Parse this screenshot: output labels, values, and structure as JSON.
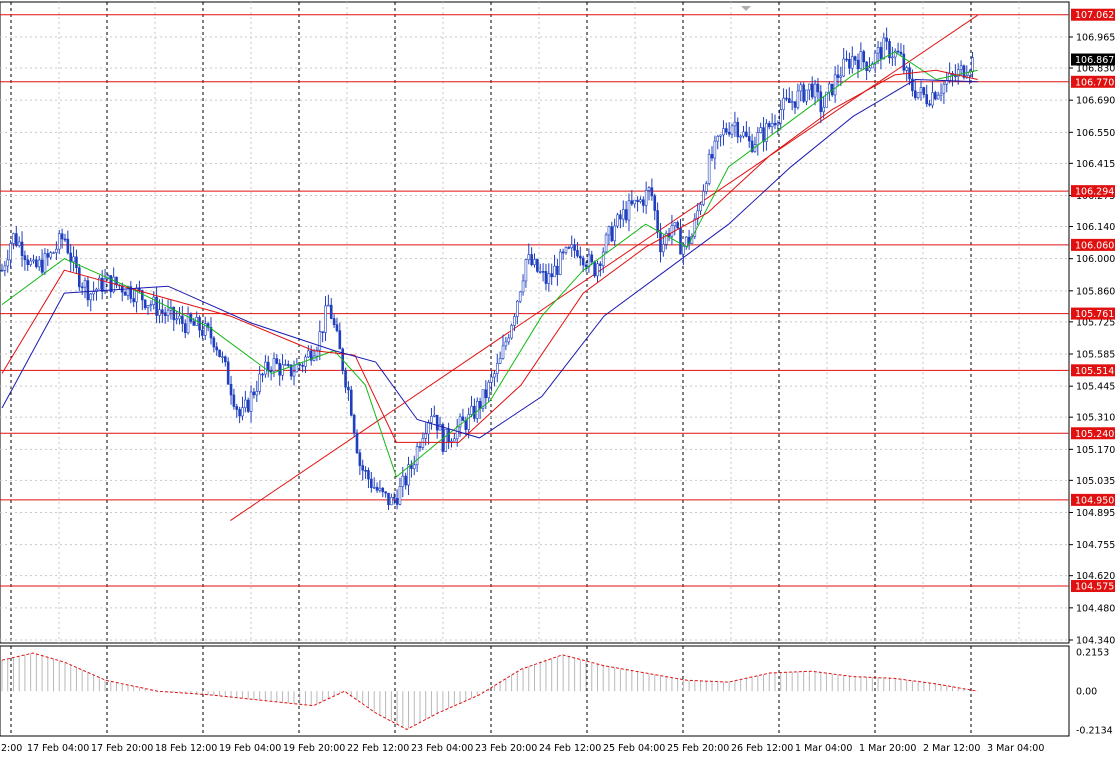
{
  "chart_data": {
    "type": "candlestick",
    "symbol_hint": "",
    "y_range": [
      104.34,
      107.08
    ],
    "y_ticks": [
      "106.965",
      "106.830",
      "106.690",
      "106.550",
      "106.415",
      "106.275",
      "106.140",
      "106.000",
      "105.860",
      "105.725",
      "105.585",
      "105.445",
      "105.310",
      "105.170",
      "105.035",
      "104.895",
      "104.755",
      "104.620",
      "104.480",
      "104.340"
    ],
    "horizontal_levels": [
      {
        "value": 107.062,
        "label": "107.062"
      },
      {
        "value": 106.77,
        "label": "106.770"
      },
      {
        "value": 106.294,
        "label": "106.294"
      },
      {
        "value": 106.06,
        "label": "106.060"
      },
      {
        "value": 105.761,
        "label": "105.761"
      },
      {
        "value": 105.514,
        "label": "105.514"
      },
      {
        "value": 105.24,
        "label": "105.240"
      },
      {
        "value": 104.95,
        "label": "104.950"
      },
      {
        "value": 104.575,
        "label": "104.575"
      }
    ],
    "current_price": {
      "value": 106.867,
      "label": "106.867"
    },
    "x_labels": [
      "2:00",
      "17 Feb 04:00",
      "17 Feb 20:00",
      "18 Feb 12:00",
      "19 Feb 04:00",
      "19 Feb 20:00",
      "22 Feb 12:00",
      "23 Feb 04:00",
      "23 Feb 20:00",
      "24 Feb 12:00",
      "25 Feb 04:00",
      "25 Feb 20:00",
      "26 Feb 12:00",
      "1 Mar 04:00",
      "1 Mar 20:00",
      "2 Mar 12:00",
      "3 Mar 04:00"
    ],
    "trend_line": {
      "from": {
        "bar": 0.22,
        "price": 104.86
      },
      "to": {
        "bar": 0.94,
        "price": 107.06
      }
    },
    "price_path": [
      [
        0.0,
        105.95
      ],
      [
        0.01,
        106.1
      ],
      [
        0.02,
        106.05
      ],
      [
        0.03,
        105.95
      ],
      [
        0.045,
        106.0
      ],
      [
        0.06,
        106.1
      ],
      [
        0.07,
        105.95
      ],
      [
        0.085,
        105.85
      ],
      [
        0.1,
        105.9
      ],
      [
        0.115,
        105.88
      ],
      [
        0.13,
        105.85
      ],
      [
        0.145,
        105.8
      ],
      [
        0.16,
        105.75
      ],
      [
        0.175,
        105.72
      ],
      [
        0.19,
        105.7
      ],
      [
        0.205,
        105.65
      ],
      [
        0.22,
        105.45
      ],
      [
        0.23,
        105.3
      ],
      [
        0.245,
        105.45
      ],
      [
        0.26,
        105.55
      ],
      [
        0.275,
        105.5
      ],
      [
        0.29,
        105.55
      ],
      [
        0.305,
        105.65
      ],
      [
        0.315,
        105.8
      ],
      [
        0.325,
        105.6
      ],
      [
        0.335,
        105.4
      ],
      [
        0.345,
        105.1
      ],
      [
        0.355,
        105.03
      ],
      [
        0.365,
        104.97
      ],
      [
        0.375,
        104.94
      ],
      [
        0.385,
        105.0
      ],
      [
        0.395,
        105.1
      ],
      [
        0.405,
        105.25
      ],
      [
        0.415,
        105.35
      ],
      [
        0.425,
        105.2
      ],
      [
        0.435,
        105.25
      ],
      [
        0.45,
        105.3
      ],
      [
        0.465,
        105.4
      ],
      [
        0.48,
        105.55
      ],
      [
        0.495,
        105.8
      ],
      [
        0.505,
        106.0
      ],
      [
        0.515,
        105.95
      ],
      [
        0.525,
        105.9
      ],
      [
        0.54,
        106.0
      ],
      [
        0.555,
        106.05
      ],
      [
        0.57,
        105.95
      ],
      [
        0.585,
        106.1
      ],
      [
        0.6,
        106.2
      ],
      [
        0.615,
        106.25
      ],
      [
        0.625,
        106.3
      ],
      [
        0.635,
        106.05
      ],
      [
        0.645,
        106.15
      ],
      [
        0.655,
        106.05
      ],
      [
        0.665,
        106.1
      ],
      [
        0.68,
        106.4
      ],
      [
        0.695,
        106.55
      ],
      [
        0.705,
        106.6
      ],
      [
        0.72,
        106.5
      ],
      [
        0.735,
        106.55
      ],
      [
        0.75,
        106.65
      ],
      [
        0.765,
        106.7
      ],
      [
        0.78,
        106.75
      ],
      [
        0.79,
        106.65
      ],
      [
        0.805,
        106.8
      ],
      [
        0.82,
        106.88
      ],
      [
        0.835,
        106.85
      ],
      [
        0.85,
        106.92
      ],
      [
        0.865,
        106.88
      ],
      [
        0.875,
        106.75
      ],
      [
        0.89,
        106.7
      ],
      [
        0.905,
        106.75
      ],
      [
        0.92,
        106.8
      ],
      [
        0.935,
        106.86
      ]
    ],
    "ma_fast": [
      [
        0.0,
        105.8
      ],
      [
        0.06,
        106.0
      ],
      [
        0.12,
        105.88
      ],
      [
        0.2,
        105.7
      ],
      [
        0.26,
        105.5
      ],
      [
        0.32,
        105.6
      ],
      [
        0.35,
        105.45
      ],
      [
        0.38,
        105.05
      ],
      [
        0.42,
        105.2
      ],
      [
        0.47,
        105.38
      ],
      [
        0.52,
        105.75
      ],
      [
        0.56,
        105.95
      ],
      [
        0.62,
        106.15
      ],
      [
        0.66,
        106.05
      ],
      [
        0.7,
        106.4
      ],
      [
        0.76,
        106.6
      ],
      [
        0.82,
        106.8
      ],
      [
        0.86,
        106.9
      ],
      [
        0.9,
        106.78
      ],
      [
        0.94,
        106.82
      ]
    ],
    "ma_mid": [
      [
        0.0,
        105.5
      ],
      [
        0.06,
        105.95
      ],
      [
        0.14,
        105.85
      ],
      [
        0.22,
        105.75
      ],
      [
        0.3,
        105.6
      ],
      [
        0.34,
        105.58
      ],
      [
        0.38,
        105.2
      ],
      [
        0.44,
        105.2
      ],
      [
        0.5,
        105.45
      ],
      [
        0.56,
        105.85
      ],
      [
        0.62,
        106.05
      ],
      [
        0.68,
        106.2
      ],
      [
        0.74,
        106.45
      ],
      [
        0.8,
        106.65
      ],
      [
        0.86,
        106.8
      ],
      [
        0.9,
        106.82
      ],
      [
        0.94,
        106.78
      ]
    ],
    "ma_slow": [
      [
        0.0,
        105.35
      ],
      [
        0.06,
        105.85
      ],
      [
        0.16,
        105.88
      ],
      [
        0.24,
        105.72
      ],
      [
        0.32,
        105.6
      ],
      [
        0.36,
        105.55
      ],
      [
        0.4,
        105.3
      ],
      [
        0.46,
        105.22
      ],
      [
        0.52,
        105.4
      ],
      [
        0.58,
        105.75
      ],
      [
        0.64,
        105.95
      ],
      [
        0.7,
        106.15
      ],
      [
        0.76,
        106.4
      ],
      [
        0.82,
        106.62
      ],
      [
        0.88,
        106.78
      ],
      [
        0.94,
        106.77
      ]
    ],
    "oscillator": {
      "y_ticks": [
        "0.2153",
        "0.00",
        "-0.2134"
      ],
      "y_range": [
        -0.26,
        0.24
      ],
      "path": [
        [
          0.0,
          0.17
        ],
        [
          0.03,
          0.21
        ],
        [
          0.06,
          0.16
        ],
        [
          0.1,
          0.06
        ],
        [
          0.15,
          0.0
        ],
        [
          0.2,
          -0.02
        ],
        [
          0.25,
          -0.05
        ],
        [
          0.3,
          -0.08
        ],
        [
          0.33,
          0.0
        ],
        [
          0.36,
          -0.12
        ],
        [
          0.39,
          -0.21
        ],
        [
          0.42,
          -0.12
        ],
        [
          0.46,
          -0.02
        ],
        [
          0.5,
          0.12
        ],
        [
          0.54,
          0.2
        ],
        [
          0.58,
          0.14
        ],
        [
          0.62,
          0.1
        ],
        [
          0.66,
          0.06
        ],
        [
          0.7,
          0.05
        ],
        [
          0.74,
          0.1
        ],
        [
          0.78,
          0.11
        ],
        [
          0.82,
          0.08
        ],
        [
          0.86,
          0.07
        ],
        [
          0.9,
          0.04
        ],
        [
          0.94,
          0.0
        ]
      ]
    }
  }
}
